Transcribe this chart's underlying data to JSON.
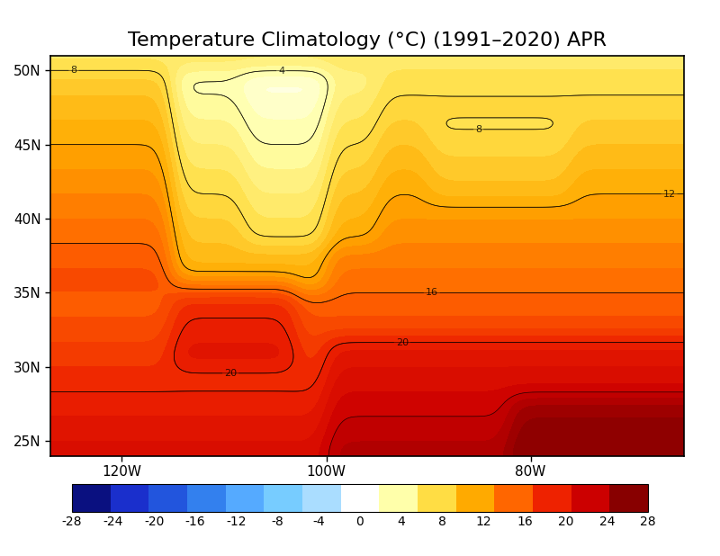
{
  "title": "Temperature Climatology (°C) (1991–2020) APR",
  "colorbar_ticks": [
    -28,
    -24,
    -20,
    -16,
    -12,
    -8,
    -4,
    0,
    4,
    8,
    12,
    16,
    20,
    24,
    28
  ],
  "colorbar_colors": [
    "#0a1080",
    "#1a2fcc",
    "#2255dd",
    "#3380ee",
    "#55aaff",
    "#77ccff",
    "#aaddff",
    "#ffffff",
    "#ffffaa",
    "#ffdd44",
    "#ffaa00",
    "#ff6600",
    "#ee2200",
    "#cc0000",
    "#880000"
  ],
  "vmin": -28,
  "vmax": 28,
  "lon_ticks": [
    -120,
    -100,
    -80
  ],
  "lon_labels": [
    "120W",
    "100W",
    "80W"
  ],
  "lat_ticks": [
    25,
    30,
    35,
    40,
    45,
    50
  ],
  "lat_labels": [
    "25N",
    "30N",
    "35N",
    "40N",
    "45N",
    "50N"
  ],
  "extent": [
    -127,
    -65,
    24,
    51
  ],
  "map_background": "#ffffff",
  "title_fontsize": 16
}
